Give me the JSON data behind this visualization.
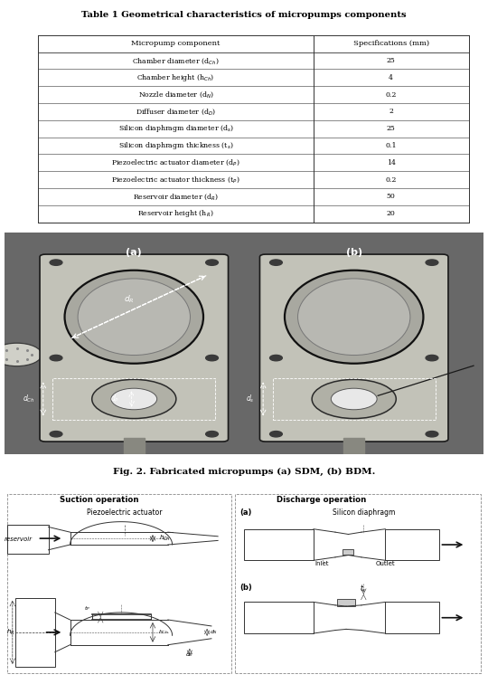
{
  "title": "Table 1 Geometrical characteristics of micropumps components",
  "col_headers": [
    "Micropump component",
    "Specifications (mm)"
  ],
  "rows": [
    [
      "Chamber diameter (d$_{Ch}$)",
      "25"
    ],
    [
      "Chamber height (h$_{Ch}$)",
      "4"
    ],
    [
      "Nozzle diameter (d$_N$)",
      "0.2"
    ],
    [
      "Diffuser diameter (d$_D$)",
      "2"
    ],
    [
      "Silicon diaphragm diameter (d$_s$)",
      "25"
    ],
    [
      "Silicon diaphragm thickness (t$_s$)",
      "0.1"
    ],
    [
      "Piezoelectric actuator diameter (d$_P$)",
      "14"
    ],
    [
      "Piezoelectric actuator thickness (t$_P$)",
      "0.2"
    ],
    [
      "Reservoir diameter (d$_R$)",
      "50"
    ],
    [
      "Reservoir height (h$_R$)",
      "20"
    ]
  ],
  "fig2_caption": "Fig. 2. Fabricated micropumps (a) SDM, (b) BDM.",
  "bg_color": "#ffffff",
  "photo_bg": "#7a7a7a"
}
